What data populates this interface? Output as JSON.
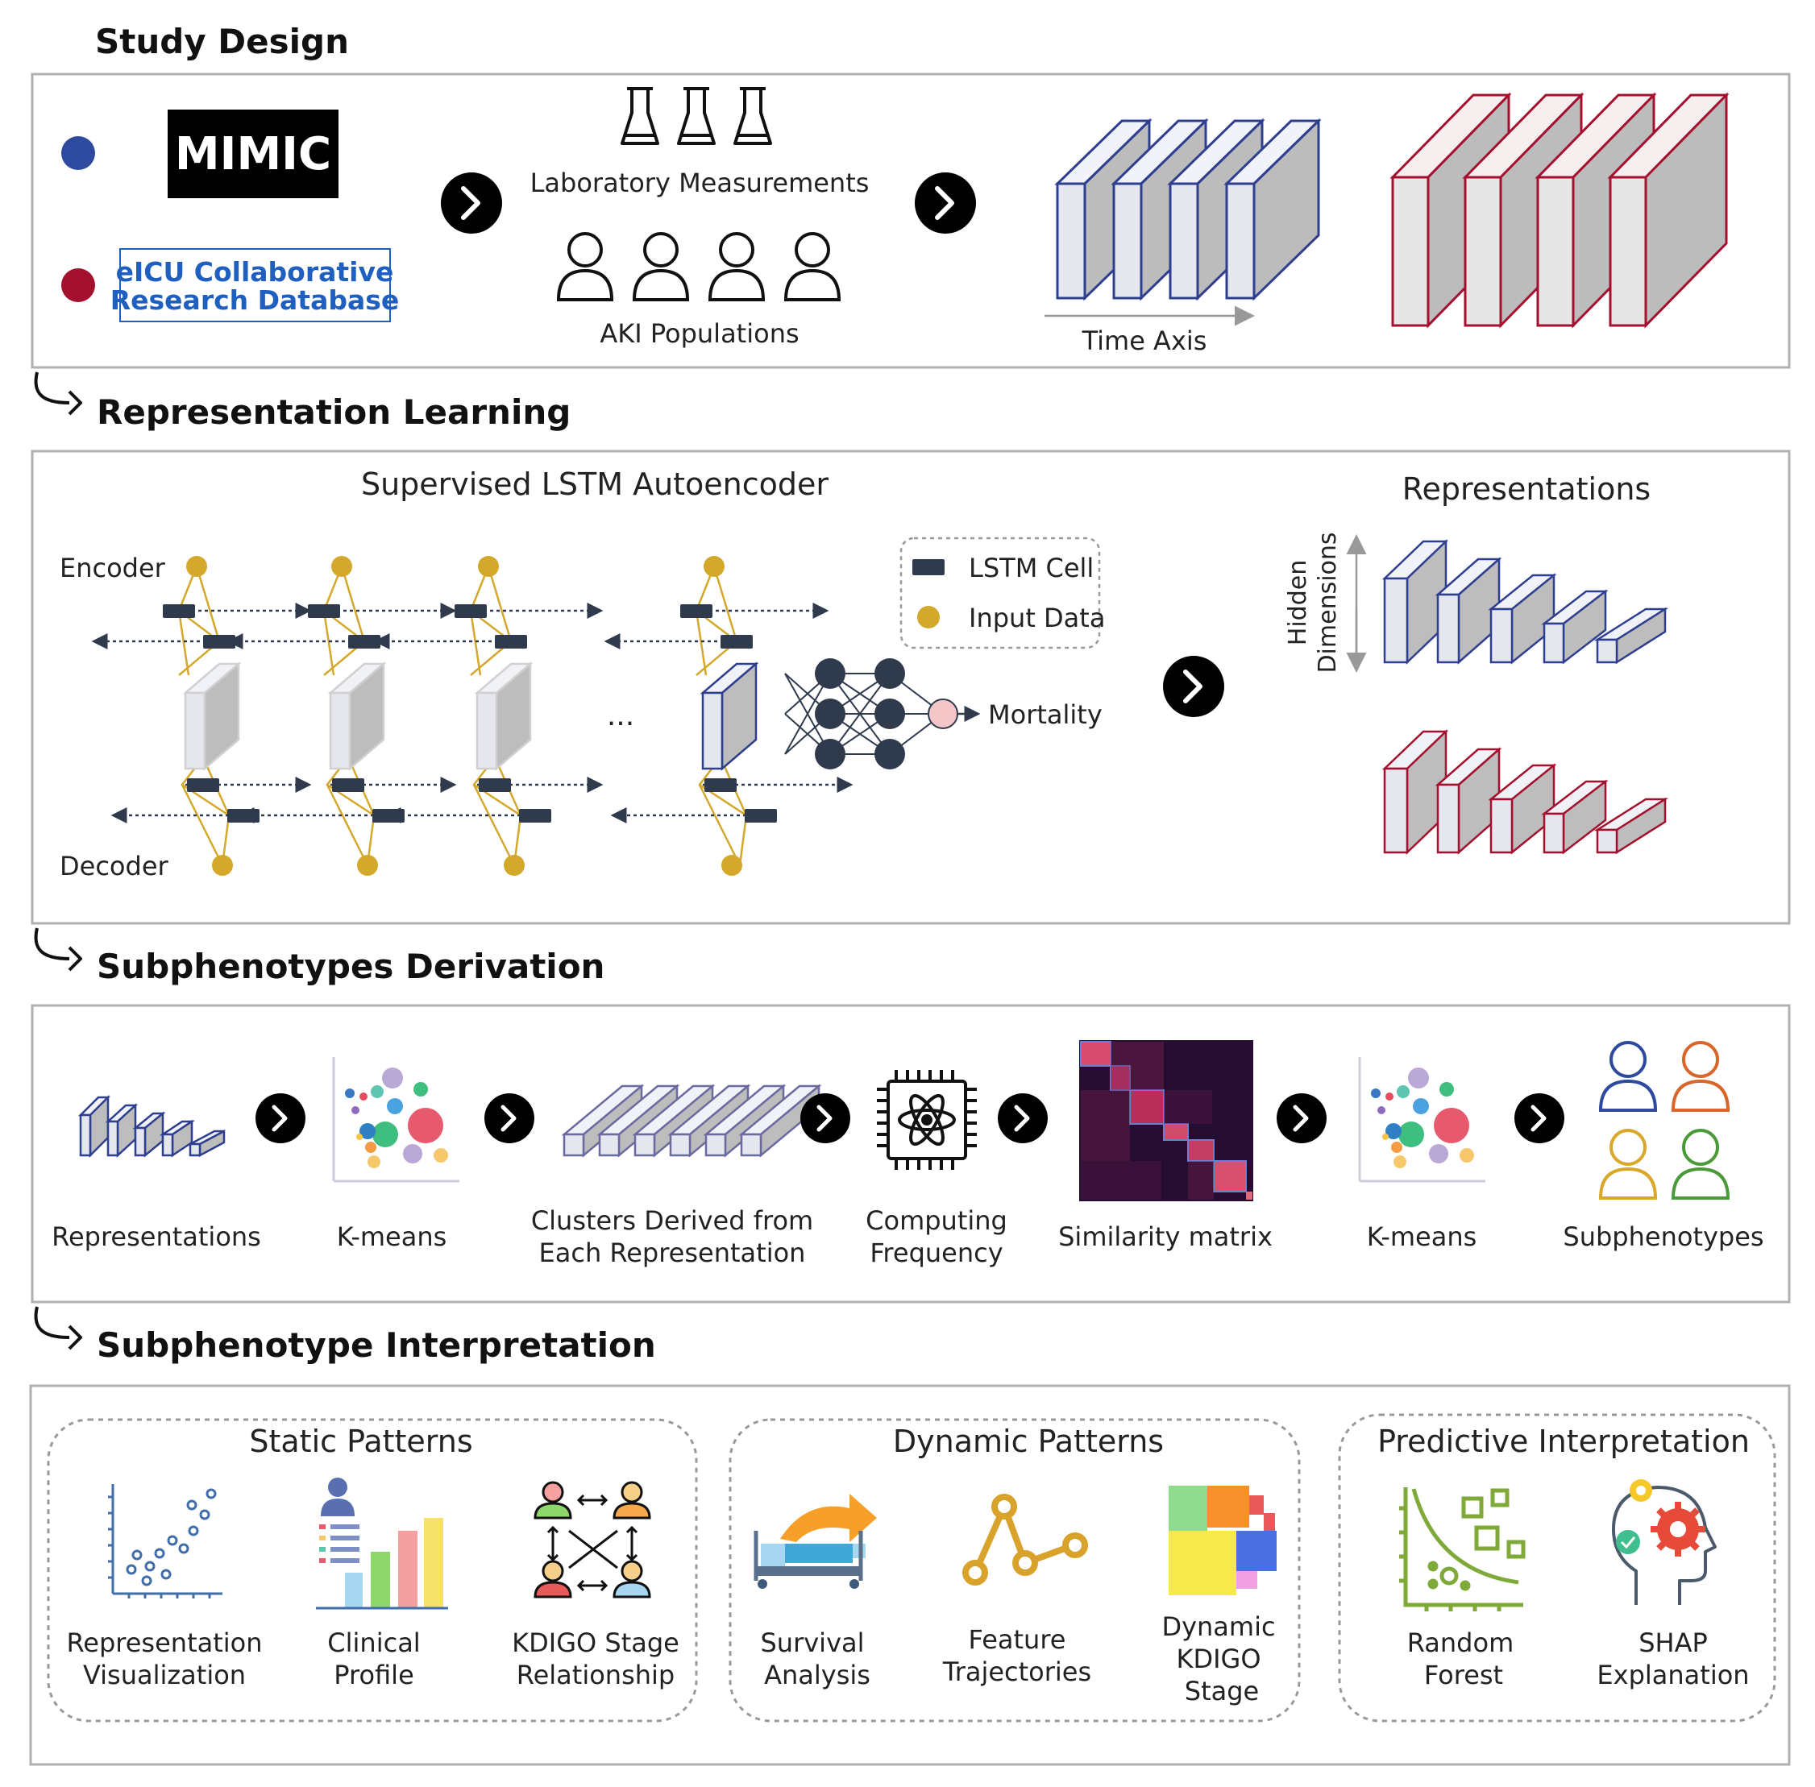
{
  "sections": {
    "study_design": "Study Design",
    "representation_learning": "Representation Learning",
    "subphenotypes_derivation": "Subphenotypes Derivation",
    "subphenotype_interpretation": "Subphenotype Interpretation"
  },
  "study": {
    "mimic_logo": "MIMIC",
    "eicu_line1": "eICU Collaborative",
    "eicu_line2": "Research Database",
    "lab_measurements": "Laboratory Measurements",
    "aki_populations": "AKI Populations",
    "time_axis": "Time Axis"
  },
  "rep": {
    "title": "Supervised LSTM Autoencoder",
    "encoder": "Encoder",
    "decoder": "Decoder",
    "ellipsis": "...",
    "legend_lstm": "LSTM Cell",
    "legend_input": "Input Data",
    "mortality": "Mortality",
    "representations": "Representations",
    "hidden_dim_1": "Hidden",
    "hidden_dim_2": "Dimensions"
  },
  "deriv": {
    "representations": "Representations",
    "kmeans1": "K-means",
    "clusters_1": "Clusters  Derived  from",
    "clusters_2": "Each Representation",
    "computing_1": "Computing",
    "computing_2": "Frequency",
    "similarity": "Similarity matrix",
    "kmeans2": "K-means",
    "subphenotypes": "Subphenotypes"
  },
  "interp": {
    "static_title": "Static Patterns",
    "dynamic_title": "Dynamic Patterns",
    "predictive_title": "Predictive Interpretation",
    "rep_vis_1": "Representation",
    "rep_vis_2": "Visualization",
    "clinical_1": "Clinical",
    "clinical_2": "Profile",
    "kdigo_rel_1": "KDIGO Stage",
    "kdigo_rel_2": "Relationship",
    "survival_1": "Survival",
    "survival_2": "Analysis",
    "feature_1": "Feature",
    "feature_2": "Trajectories",
    "dyn_kdigo_1": "Dynamic",
    "dyn_kdigo_2": "KDIGO",
    "dyn_kdigo_3": "Stage",
    "rf_1": "Random",
    "rf_2": "Forest",
    "shap_1": "SHAP",
    "shap_2": "Explanation"
  },
  "colors": {
    "mimic_dot": "#2e4a9e",
    "eicu_dot": "#a3112e",
    "blue_outline": "#2e3f8f",
    "red_outline": "#a3112e",
    "gold": "#d4a82a",
    "lstm_cell": "#2f3b4c"
  }
}
